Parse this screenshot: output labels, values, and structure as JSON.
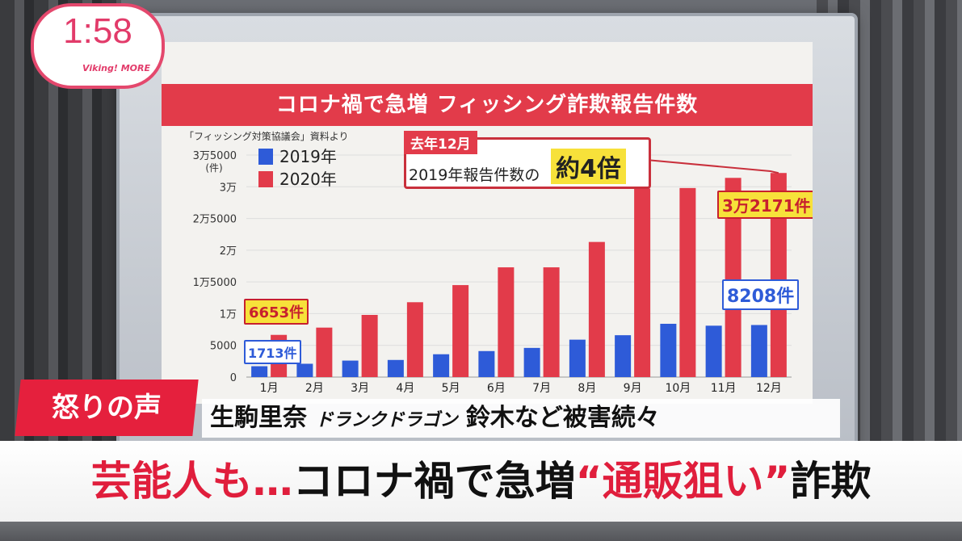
{
  "clock": {
    "time": "1:58",
    "logo": "Viking! MORE"
  },
  "chart_data": {
    "type": "bar",
    "title": "コロナ禍で急増 フィッシング詐欺報告件数",
    "source": "「フィッシング対策協議会」資料より",
    "ylabel": "(件)",
    "ylim": [
      0,
      35000
    ],
    "yticks": [
      {
        "v": 0,
        "label": "0"
      },
      {
        "v": 5000,
        "label": "5000"
      },
      {
        "v": 10000,
        "label": "1万"
      },
      {
        "v": 15000,
        "label": "1万5000"
      },
      {
        "v": 20000,
        "label": "2万"
      },
      {
        "v": 25000,
        "label": "2万5000"
      },
      {
        "v": 30000,
        "label": "3万"
      },
      {
        "v": 35000,
        "label": "3万5000"
      }
    ],
    "categories": [
      "1月",
      "2月",
      "3月",
      "4月",
      "5月",
      "6月",
      "7月",
      "8月",
      "9月",
      "10月",
      "11月",
      "12月"
    ],
    "series": [
      {
        "name": "2019年",
        "color": "#2e5bd8",
        "values": [
          1713,
          2100,
          2600,
          2700,
          3600,
          4100,
          4600,
          5900,
          6600,
          8400,
          8100,
          8208
        ]
      },
      {
        "name": "2020年",
        "color": "#e23b4a",
        "values": [
          6653,
          7800,
          9800,
          11800,
          14500,
          17300,
          17300,
          21300,
          29700,
          29800,
          31400,
          32171
        ]
      }
    ],
    "labels": {
      "jan_2020": "6653件",
      "jan_2019": "1713件",
      "dec_2020": "3万2171件",
      "dec_2019": "8208件"
    },
    "callout": {
      "tag": "去年12月",
      "text": "2019年報告件数の",
      "highlight": "約4倍"
    }
  },
  "lower_third": {
    "tag": "怒りの声",
    "sub_names": "生駒里奈",
    "sub_group": "ドランクドラゴン",
    "sub_rest": "鈴木など被害続々",
    "main_red1": "芸能人も…",
    "main_black": "コロナ禍で急増",
    "main_red2": "“通販狙い”",
    "main_black2": "詐欺"
  }
}
